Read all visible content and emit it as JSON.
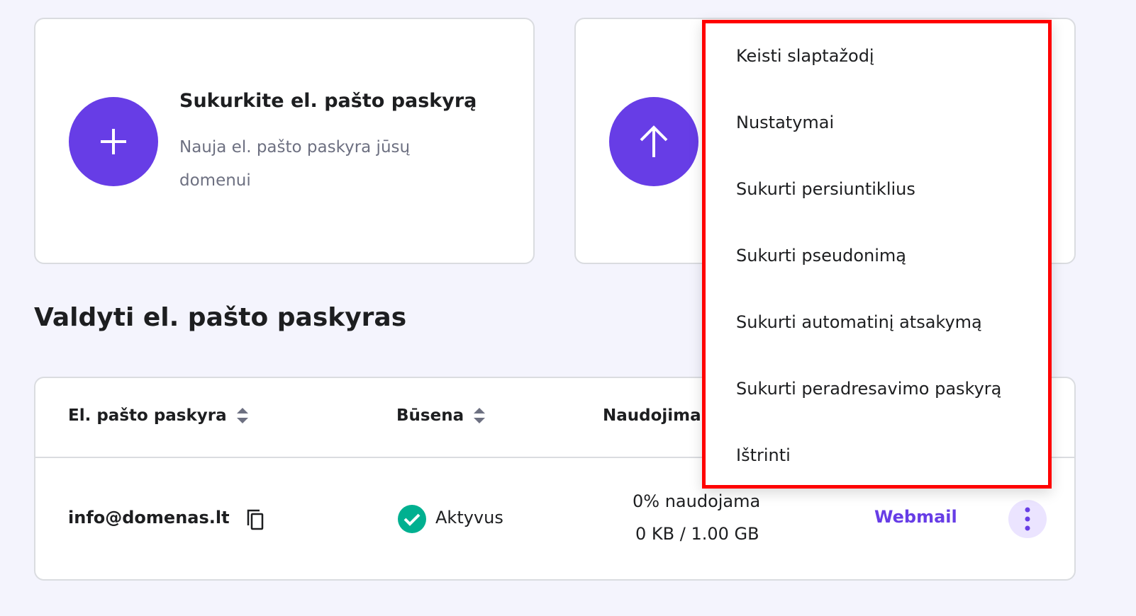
{
  "create_card": {
    "title": "Sukurkite el. pašto paskyrą",
    "description": "Nauja el. pašto paskyra jūsų domenui",
    "icon": "plus-icon"
  },
  "second_card": {
    "icon": "arrow-up-icon"
  },
  "section_title": "Valdyti el. pašto paskyras",
  "table": {
    "columns": [
      "El. pašto paskyra",
      "Būsena",
      "Naudojima"
    ],
    "rows": [
      {
        "account": "info@domenas.lt",
        "status": "Aktyvus",
        "usage_percent": "0% naudojama",
        "usage_size": "0 KB / 1.00 GB",
        "webmail": "Webmail"
      }
    ]
  },
  "menu": {
    "items": [
      "Keisti slaptažodį",
      "Nustatymai",
      "Sukurti persiuntiklius",
      "Sukurti pseudonimą",
      "Sukurti automatinį atsakymą",
      "Sukurti peradresavimo paskyrą",
      "Ištrinti"
    ]
  },
  "colors": {
    "accent": "#673de6",
    "success": "#00b090",
    "highlight": "#ff0000"
  }
}
